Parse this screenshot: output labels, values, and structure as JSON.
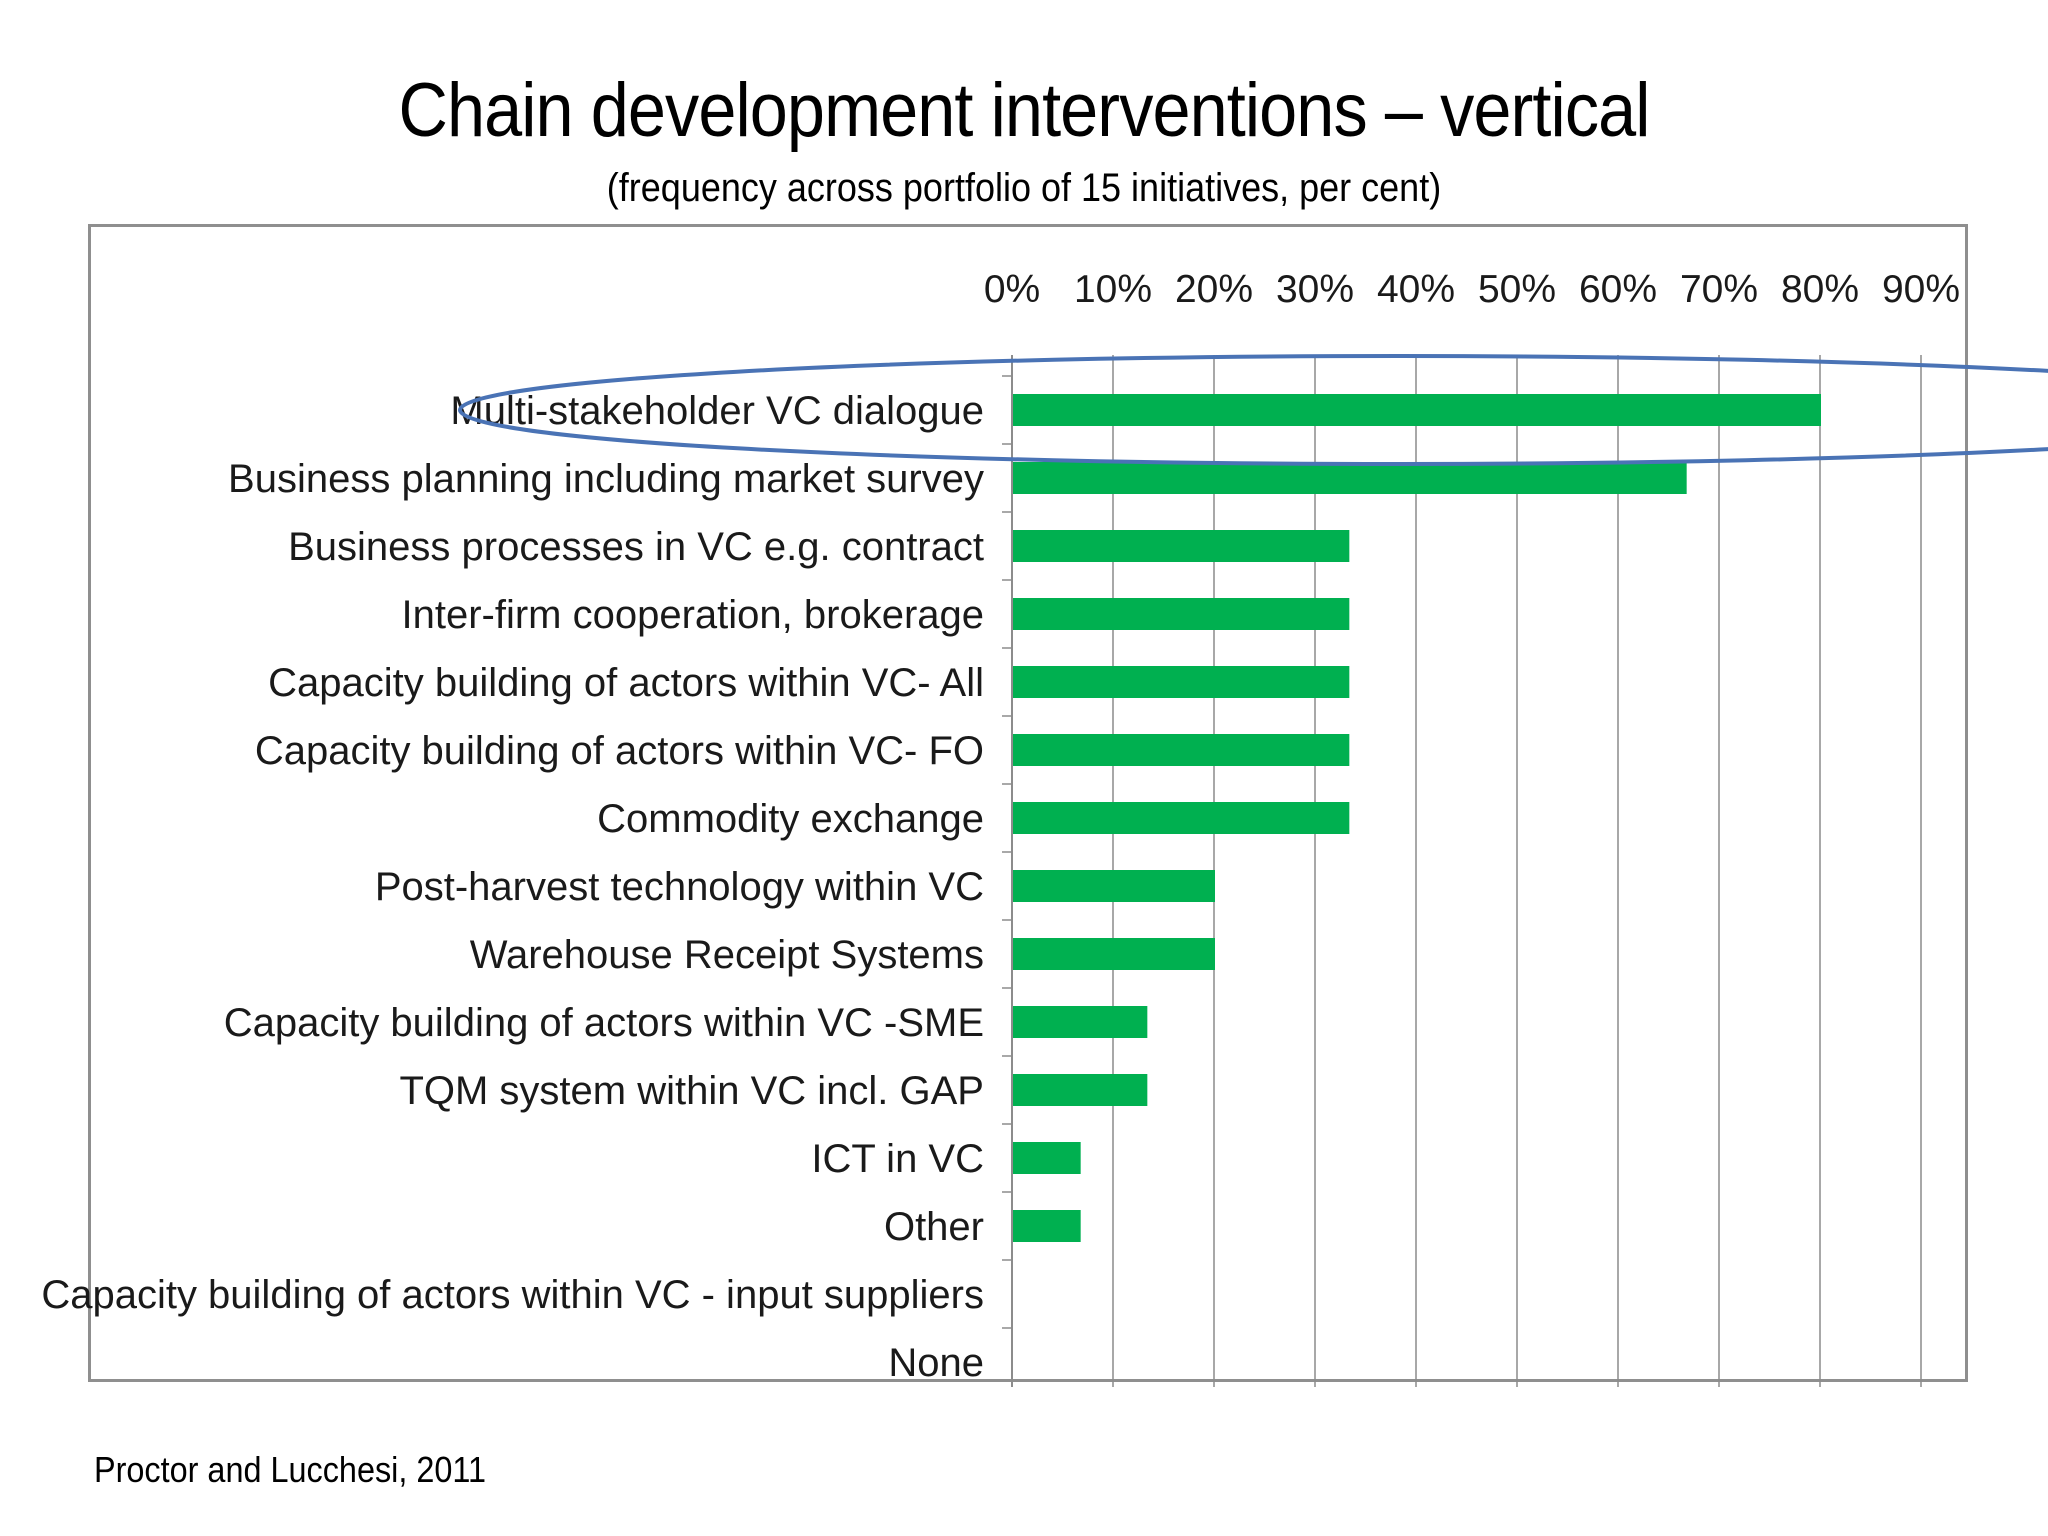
{
  "title": "Chain development interventions – vertical",
  "subtitle": "(frequency across portfolio of 15 initiatives, per cent)",
  "source": "Proctor and Lucchesi, 2011",
  "colors": {
    "bar": "#00b050",
    "grid": "#8c8c8c",
    "highlight_ellipse": "#4a73b5",
    "frame": "#8f8f8f"
  },
  "chart_data": {
    "type": "bar",
    "orientation": "horizontal",
    "categories": [
      "Multi-stakeholder VC dialogue",
      "Business planning including market survey",
      "Business processes in VC e.g. contract",
      "Inter-firm cooperation, brokerage",
      "Capacity building of actors within VC- All",
      "Capacity building of actors within VC- FO",
      "Commodity exchange",
      "Post-harvest technology within VC",
      "Warehouse Receipt Systems",
      "Capacity building of actors within VC -SME",
      "TQM system within VC incl. GAP",
      "ICT in VC",
      "Other",
      "Capacity building of actors within VC - input suppliers",
      "None"
    ],
    "values": [
      80,
      66.7,
      33.3,
      33.3,
      33.3,
      33.3,
      33.3,
      20,
      20,
      13.3,
      13.3,
      6.7,
      6.7,
      0,
      0
    ],
    "xlim": [
      0,
      90
    ],
    "x_ticks": [
      "0%",
      "10%",
      "20%",
      "30%",
      "40%",
      "50%",
      "60%",
      "70%",
      "80%",
      "90%"
    ],
    "x_axis_position": "top",
    "grid": true,
    "legend": "none",
    "highlighted_category": "Multi-stakeholder VC dialogue"
  }
}
